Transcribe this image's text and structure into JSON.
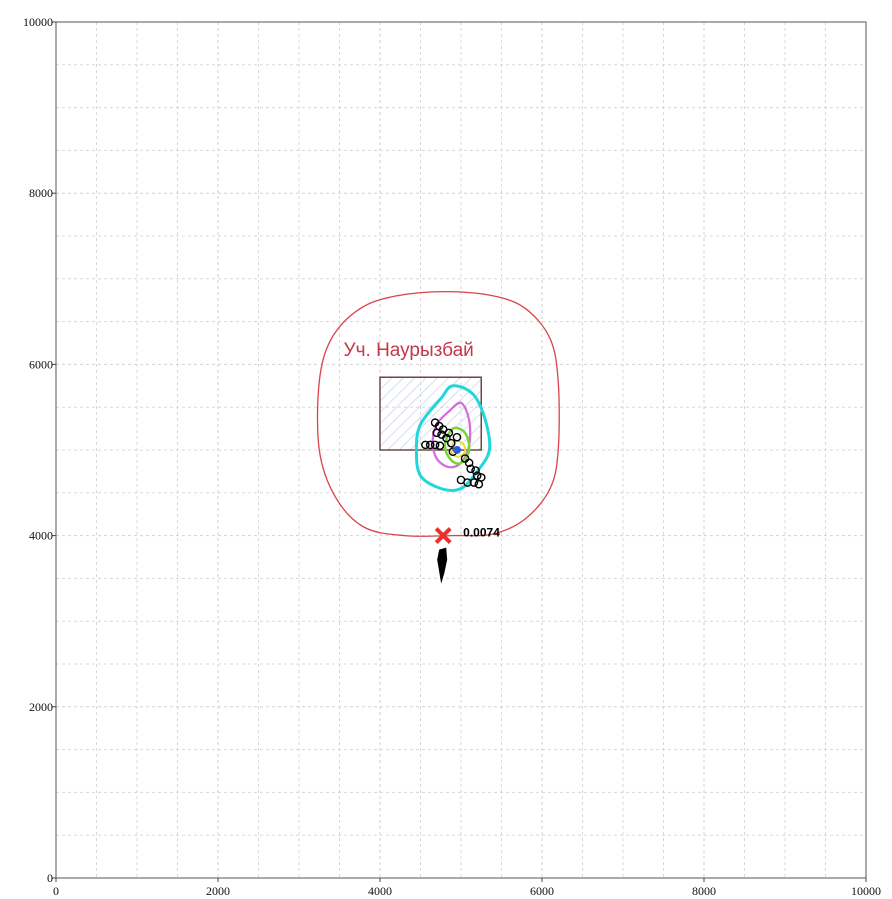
{
  "map": {
    "site_label": "Уч. Наурызбай",
    "max_point_value": "0.0074",
    "colors": {
      "zone_boundary": "#d9434b",
      "grid": "#d8d8d8",
      "site_outline": "#6b4a44",
      "contour_cyan": "#21d6dc",
      "contour_magenta": "#d46bd9",
      "contour_green": "#7dd13a",
      "contour_yellow": "#e3e03a",
      "source_marker": "#2c5fd6",
      "max_marker": "#e5322d"
    }
  },
  "chart_data": {
    "type": "contour-map",
    "xlim": [
      0,
      10000
    ],
    "ylim": [
      0,
      10000
    ],
    "xticks": [
      "0",
      "2000",
      "4000",
      "6000",
      "8000",
      "10000"
    ],
    "yticks": [
      "0",
      "2000",
      "4000",
      "6000",
      "8000",
      "10000"
    ],
    "grid": true,
    "site_rect": [
      4000,
      5000,
      5250,
      5850
    ],
    "source_point": [
      4950,
      5000
    ],
    "max_point": [
      4780,
      4000
    ],
    "max_point_value": "0.0074",
    "sanitary_zone": [
      [
        4800,
        6850
      ],
      [
        5400,
        6800
      ],
      [
        5800,
        6650
      ],
      [
        6100,
        6300
      ],
      [
        6200,
        5800
      ],
      [
        6200,
        5000
      ],
      [
        6100,
        4550
      ],
      [
        5800,
        4200
      ],
      [
        5400,
        4020
      ],
      [
        4900,
        4000
      ],
      [
        4300,
        4000
      ],
      [
        3800,
        4100
      ],
      [
        3450,
        4450
      ],
      [
        3250,
        5000
      ],
      [
        3250,
        5800
      ],
      [
        3400,
        6300
      ],
      [
        3750,
        6650
      ],
      [
        4200,
        6800
      ]
    ],
    "contours": [
      {
        "color": "cyan",
        "points": [
          [
            4750,
            5600
          ],
          [
            4900,
            5750
          ],
          [
            5150,
            5650
          ],
          [
            5300,
            5350
          ],
          [
            5350,
            5000
          ],
          [
            5200,
            4750
          ],
          [
            5000,
            4550
          ],
          [
            4750,
            4550
          ],
          [
            4500,
            4700
          ],
          [
            4450,
            5000
          ],
          [
            4500,
            5300
          ]
        ]
      },
      {
        "color": "magenta",
        "points": [
          [
            4850,
            5450
          ],
          [
            5000,
            5550
          ],
          [
            5100,
            5350
          ],
          [
            5100,
            5050
          ],
          [
            5000,
            4850
          ],
          [
            4850,
            4800
          ],
          [
            4700,
            4900
          ],
          [
            4650,
            5100
          ],
          [
            4700,
            5300
          ]
        ]
      },
      {
        "color": "green",
        "points": [
          [
            4900,
            5250
          ],
          [
            5050,
            5200
          ],
          [
            5100,
            5000
          ],
          [
            5000,
            4850
          ],
          [
            4880,
            4880
          ],
          [
            4800,
            5050
          ]
        ]
      },
      {
        "color": "yellow",
        "points": [
          [
            4920,
            5100
          ],
          [
            5020,
            5080
          ],
          [
            5050,
            4980
          ],
          [
            4960,
            4920
          ],
          [
            4880,
            4980
          ]
        ]
      }
    ]
  }
}
